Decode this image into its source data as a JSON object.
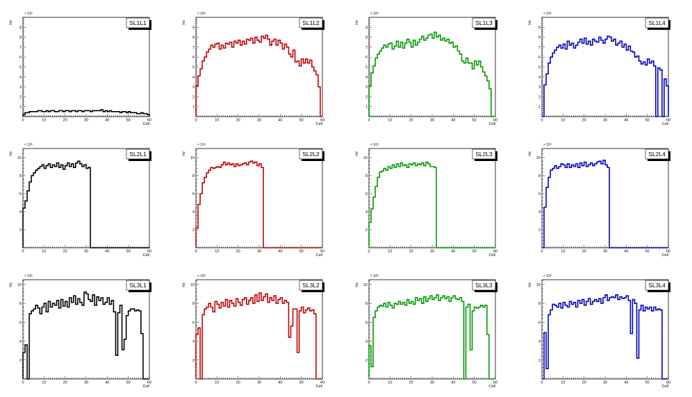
{
  "colors": {
    "black": "#000000",
    "red": "#c00000",
    "green": "#009900",
    "blue": "#0000bb"
  },
  "chart_data": [
    {
      "type": "histogram",
      "title": "SL1L1",
      "legend": "SL1L1",
      "color": "#000000",
      "xlabel": "Cell",
      "ylabel": "Hz",
      "y_exponent": "× 10³",
      "xlim": [
        0,
        60
      ],
      "ylim": [
        0,
        10
      ],
      "x_ticks": [
        "0",
        "10",
        "20",
        "30",
        "40",
        "50",
        "60"
      ],
      "y_ticks": [
        "1",
        "2",
        "3",
        "4",
        "5",
        "6",
        "7",
        "8",
        "9"
      ],
      "values": [
        0.2,
        0.4,
        0.4,
        0.5,
        0.5,
        0.5,
        0.5,
        0.6,
        0.6,
        0.5,
        0.5,
        0.6,
        0.5,
        0.6,
        0.6,
        0.5,
        0.5,
        0.6,
        0.6,
        0.5,
        0.6,
        0.6,
        0.5,
        0.6,
        0.6,
        0.5,
        0.6,
        0.6,
        0.5,
        0.6,
        0.6,
        0.6,
        0.5,
        0.6,
        0.6,
        0.6,
        0.6,
        0.7,
        0.5,
        0.6,
        0.5,
        0.6,
        0.5,
        0.5,
        0.5,
        0.5,
        0.4,
        0.5,
        0.5,
        0.4,
        0.5,
        0.4,
        0.4,
        0.4,
        0.3,
        0.3,
        0.4,
        0.3,
        0.3,
        0.2
      ]
    },
    {
      "type": "histogram",
      "title": "SL1L2",
      "legend": "SL1L2",
      "color": "#c00000",
      "xlabel": "Cell",
      "ylabel": "Hz",
      "y_exponent": "× 10³",
      "xlim": [
        0,
        60
      ],
      "ylim": [
        0,
        10
      ],
      "x_ticks": [
        "0",
        "10",
        "20",
        "30",
        "40",
        "50",
        "60"
      ],
      "y_ticks": [
        "1",
        "2",
        "3",
        "4",
        "5",
        "6",
        "7",
        "8",
        "9"
      ],
      "values": [
        3.1,
        4.1,
        4.8,
        5.6,
        6.0,
        6.5,
        6.8,
        7.2,
        7.0,
        7.3,
        7.4,
        6.8,
        7.2,
        6.9,
        7.4,
        7.3,
        7.5,
        7.0,
        7.6,
        7.4,
        7.7,
        7.2,
        7.6,
        7.3,
        7.8,
        7.7,
        7.9,
        7.4,
        8.0,
        7.7,
        7.5,
        8.1,
        7.9,
        8.2,
        7.8,
        7.2,
        7.6,
        7.8,
        7.2,
        7.7,
        7.4,
        6.8,
        7.3,
        7.0,
        6.3,
        6.0,
        6.7,
        5.5,
        5.6,
        5.1,
        5.8,
        5.4,
        5.8,
        5.4,
        5.7,
        5.0,
        4.6,
        4.2,
        3.0,
        0.0
      ]
    },
    {
      "type": "histogram",
      "title": "SL1L3",
      "legend": "SL1L3",
      "color": "#009900",
      "xlabel": "Cell",
      "ylabel": "Hz",
      "y_exponent": "× 10³",
      "xlim": [
        0,
        60
      ],
      "ylim": [
        0,
        10
      ],
      "x_ticks": [
        "0",
        "10",
        "20",
        "30",
        "40",
        "50",
        "60"
      ],
      "y_ticks": [
        "1",
        "2",
        "3",
        "4",
        "5",
        "6",
        "7",
        "8",
        "9"
      ],
      "values": [
        3.1,
        4.4,
        5.1,
        5.9,
        6.3,
        6.6,
        6.9,
        7.2,
        7.0,
        7.3,
        7.4,
        6.8,
        7.1,
        7.6,
        7.0,
        7.5,
        6.9,
        7.4,
        7.8,
        7.5,
        7.0,
        7.7,
        7.2,
        7.5,
        7.8,
        8.1,
        7.7,
        7.9,
        8.2,
        8.3,
        7.9,
        8.5,
        8.0,
        8.2,
        7.7,
        7.9,
        7.6,
        7.8,
        7.4,
        7.5,
        7.0,
        7.1,
        6.6,
        6.3,
        5.6,
        5.4,
        5.9,
        5.4,
        5.4,
        4.8,
        5.6,
        5.2,
        5.6,
        5.0,
        4.5,
        4.1,
        3.6,
        2.8,
        0.0,
        0.0
      ]
    },
    {
      "type": "histogram",
      "title": "SL1L4",
      "legend": "SL1L4",
      "color": "#0000bb",
      "xlabel": "Cell",
      "ylabel": "Hz",
      "y_exponent": "× 10³",
      "xlim": [
        0,
        60
      ],
      "ylim": [
        0,
        10
      ],
      "x_ticks": [
        "0",
        "10",
        "20",
        "30",
        "40",
        "50",
        "60"
      ],
      "y_ticks": [
        "1",
        "2",
        "3",
        "4",
        "5",
        "6",
        "7",
        "8",
        "9"
      ],
      "values": [
        0.0,
        3.2,
        4.3,
        5.4,
        6.0,
        6.4,
        6.7,
        7.0,
        7.2,
        6.9,
        7.3,
        6.8,
        7.6,
        7.2,
        7.4,
        6.9,
        7.2,
        7.5,
        7.8,
        7.4,
        7.9,
        7.3,
        7.6,
        7.2,
        7.8,
        7.6,
        7.5,
        8.0,
        7.7,
        7.4,
        7.8,
        8.1,
        8.0,
        7.6,
        7.8,
        7.2,
        7.4,
        7.6,
        7.0,
        7.3,
        6.7,
        7.1,
        6.6,
        6.5,
        6.0,
        6.1,
        5.6,
        5.3,
        5.5,
        5.2,
        5.8,
        5.4,
        5.6,
        5.1,
        0.0,
        4.9,
        4.7,
        0.0,
        3.8,
        3.1
      ]
    },
    {
      "type": "histogram",
      "title": "SL2L1",
      "legend": "SL2L1",
      "color": "#000000",
      "xlabel": "Cell",
      "ylabel": "Hz",
      "y_exponent": "× 10³",
      "xlim": [
        0,
        60
      ],
      "ylim": [
        0,
        11
      ],
      "x_ticks": [
        "0",
        "10",
        "20",
        "30",
        "40",
        "50",
        "60"
      ],
      "y_ticks": [
        "2",
        "4",
        "6",
        "8",
        "10"
      ],
      "values": [
        4.4,
        5.2,
        6.3,
        7.3,
        8.0,
        8.3,
        8.6,
        8.8,
        9.0,
        9.2,
        8.8,
        9.1,
        9.3,
        8.9,
        9.2,
        9.0,
        9.4,
        8.9,
        9.2,
        8.7,
        9.1,
        9.4,
        9.0,
        9.3,
        8.9,
        9.4,
        9.6,
        9.3,
        9.0,
        9.2,
        8.8,
        8.9,
        0,
        0,
        0,
        0,
        0,
        0,
        0,
        0,
        0,
        0,
        0,
        0,
        0,
        0,
        0,
        0,
        0,
        0,
        0,
        0,
        0,
        0,
        0,
        0,
        0,
        0,
        0,
        0
      ]
    },
    {
      "type": "histogram",
      "title": "SL2L2",
      "legend": "SL2L2",
      "color": "#c00000",
      "xlabel": "Cell",
      "ylabel": "Hz",
      "y_exponent": "× 10³",
      "xlim": [
        0,
        60
      ],
      "ylim": [
        0,
        11
      ],
      "x_ticks": [
        "0",
        "10",
        "20",
        "30",
        "40",
        "50",
        "60"
      ],
      "y_ticks": [
        "2",
        "4",
        "6",
        "8",
        "10"
      ],
      "values": [
        2.2,
        4.8,
        6.0,
        7.2,
        7.8,
        8.3,
        8.6,
        8.9,
        8.8,
        8.9,
        9.0,
        8.9,
        9.2,
        9.5,
        9.2,
        9.4,
        9.2,
        9.3,
        9.0,
        9.3,
        9.1,
        9.2,
        9.3,
        9.4,
        9.2,
        9.5,
        9.6,
        9.4,
        9.5,
        9.1,
        9.3,
        8.9,
        0,
        0,
        0,
        0,
        0,
        0,
        0,
        0,
        0,
        0,
        0,
        0,
        0,
        0,
        0,
        0,
        0,
        0,
        0,
        0,
        0,
        0,
        0,
        0,
        0,
        0,
        0,
        0
      ]
    },
    {
      "type": "histogram",
      "title": "SL2L3",
      "legend": "SL2L3",
      "color": "#009900",
      "xlabel": "Cell",
      "ylabel": "Hz",
      "y_exponent": "× 10³",
      "xlim": [
        0,
        60
      ],
      "ylim": [
        0,
        11
      ],
      "x_ticks": [
        "0",
        "10",
        "20",
        "30",
        "40",
        "50",
        "60"
      ],
      "y_ticks": [
        "2",
        "4",
        "6",
        "8",
        "10"
      ],
      "values": [
        2.8,
        4.3,
        5.6,
        6.8,
        7.8,
        8.4,
        8.5,
        8.8,
        8.6,
        9.0,
        8.8,
        9.2,
        8.9,
        9.3,
        9.0,
        9.4,
        9.1,
        9.2,
        8.9,
        9.3,
        9.2,
        9.4,
        9.1,
        9.3,
        9.2,
        9.4,
        9.1,
        9.5,
        9.3,
        9.0,
        9.0,
        8.9,
        0,
        0,
        0,
        0,
        0,
        0,
        0,
        0,
        0,
        0,
        0,
        0,
        0,
        0,
        0,
        0,
        0,
        0,
        0,
        0,
        0,
        0,
        0,
        0,
        0,
        0,
        0,
        0
      ]
    },
    {
      "type": "histogram",
      "title": "SL2L4",
      "legend": "SL2L4",
      "color": "#0000bb",
      "xlabel": "Cell",
      "ylabel": "Hz",
      "y_exponent": "× 10³",
      "xlim": [
        0,
        60
      ],
      "ylim": [
        0,
        11
      ],
      "x_ticks": [
        "0",
        "10",
        "20",
        "30",
        "40",
        "50",
        "60"
      ],
      "y_ticks": [
        "2",
        "4",
        "6",
        "8",
        "10"
      ],
      "values": [
        0.0,
        4.5,
        6.7,
        7.8,
        8.6,
        8.8,
        9.1,
        8.8,
        9.0,
        9.3,
        9.2,
        8.9,
        9.3,
        8.9,
        9.2,
        9.0,
        9.3,
        8.9,
        9.4,
        9.1,
        9.5,
        9.0,
        9.2,
        9.4,
        9.1,
        9.3,
        9.5,
        9.6,
        9.3,
        9.7,
        9.2,
        8.9,
        0,
        0,
        0,
        0,
        0,
        0,
        0,
        0,
        0,
        0,
        0,
        0,
        0,
        0,
        0,
        0,
        0,
        0,
        0,
        0,
        0,
        0,
        0,
        0,
        0,
        0,
        0,
        0
      ]
    },
    {
      "type": "histogram",
      "title": "SL3L1",
      "legend": "SL3L1",
      "color": "#000000",
      "xlabel": "Cell",
      "ylabel": "Hz",
      "y_exponent": "× 10³",
      "xlim": [
        0,
        60
      ],
      "ylim": [
        0,
        10.5
      ],
      "x_ticks": [
        "0",
        "10",
        "20",
        "30",
        "40",
        "50",
        "60"
      ],
      "y_ticks": [
        "2",
        "4",
        "6",
        "8",
        "10"
      ],
      "values": [
        2.8,
        3.6,
        0.0,
        6.9,
        7.2,
        7.4,
        7.8,
        7.5,
        6.9,
        7.6,
        8.0,
        7.1,
        8.2,
        7.6,
        8.0,
        7.8,
        8.3,
        7.5,
        8.4,
        7.7,
        8.2,
        7.6,
        8.6,
        8.1,
        8.8,
        7.9,
        8.5,
        8.1,
        7.8,
        9.2,
        9.0,
        8.4,
        8.2,
        8.9,
        7.8,
        8.7,
        8.3,
        8.6,
        7.9,
        8.1,
        8.6,
        7.9,
        8.3,
        7.1,
        2.5,
        7.0,
        7.8,
        3.1,
        4.2,
        6.7,
        7.2,
        7.4,
        7.4,
        7.2,
        7.3,
        7.2,
        4.8,
        0.0,
        0.0,
        0.0
      ]
    },
    {
      "type": "histogram",
      "title": "SL3L2",
      "legend": "SL3L2",
      "color": "#c00000",
      "xlabel": "Cell",
      "ylabel": "Hz",
      "y_exponent": "× 10³",
      "xlim": [
        0,
        60
      ],
      "ylim": [
        0,
        10.5
      ],
      "x_ticks": [
        "0",
        "10",
        "20",
        "30",
        "40",
        "50",
        "60"
      ],
      "y_ticks": [
        "2",
        "4",
        "6",
        "8",
        "10"
      ],
      "values": [
        4.7,
        5.4,
        0.0,
        6.8,
        7.4,
        7.6,
        8.0,
        7.6,
        7.1,
        8.2,
        7.9,
        7.5,
        8.1,
        7.7,
        8.4,
        7.6,
        8.3,
        8.0,
        7.7,
        8.5,
        8.1,
        7.8,
        8.4,
        8.6,
        7.9,
        8.3,
        8.6,
        8.0,
        8.9,
        8.2,
        9.1,
        8.3,
        8.7,
        9.0,
        8.1,
        8.6,
        8.3,
        8.8,
        8.0,
        8.4,
        8.6,
        8.0,
        8.3,
        8.1,
        4.4,
        5.6,
        7.4,
        7.4,
        2.8,
        7.2,
        7.6,
        7.0,
        7.3,
        7.5,
        7.2,
        7.3,
        6.9,
        0.0,
        0.0,
        0.0
      ]
    },
    {
      "type": "histogram",
      "title": "SL3L3",
      "legend": "SL3L3",
      "color": "#009900",
      "xlabel": "Cell",
      "ylabel": "Hz",
      "y_exponent": "× 10³",
      "xlim": [
        0,
        60
      ],
      "ylim": [
        0,
        10.5
      ],
      "x_ticks": [
        "0",
        "10",
        "20",
        "30",
        "40",
        "50",
        "60"
      ],
      "y_ticks": [
        "2",
        "4",
        "6",
        "8",
        "10"
      ],
      "values": [
        3.5,
        1.3,
        6.5,
        7.2,
        7.6,
        7.8,
        7.7,
        8.0,
        7.6,
        8.1,
        7.8,
        7.5,
        8.0,
        7.9,
        8.2,
        7.9,
        8.1,
        7.8,
        8.4,
        8.0,
        8.2,
        7.9,
        8.6,
        8.3,
        8.5,
        8.0,
        8.7,
        8.2,
        8.5,
        8.8,
        8.4,
        8.6,
        8.9,
        8.3,
        8.6,
        8.8,
        8.5,
        8.7,
        8.2,
        8.6,
        8.8,
        8.5,
        8.4,
        8.6,
        8.2,
        0.0,
        7.6,
        7.9,
        3.1,
        7.2,
        7.6,
        7.5,
        7.6,
        7.8,
        7.6,
        7.8,
        4.7,
        0.0,
        0.0,
        0.0
      ]
    },
    {
      "type": "histogram",
      "title": "SL3L4",
      "legend": "SL3L4",
      "color": "#0000bb",
      "xlabel": "Cell",
      "ylabel": "Hz",
      "y_exponent": "× 10³",
      "xlim": [
        0,
        60
      ],
      "ylim": [
        0,
        10.5
      ],
      "x_ticks": [
        "0",
        "10",
        "20",
        "30",
        "40",
        "50",
        "60"
      ],
      "y_ticks": [
        "2",
        "4",
        "6",
        "8",
        "10"
      ],
      "values": [
        0.0,
        4.9,
        1.1,
        6.8,
        7.3,
        7.9,
        7.8,
        7.6,
        8.0,
        7.5,
        8.1,
        7.8,
        7.6,
        8.2,
        7.9,
        8.1,
        7.6,
        8.3,
        8.0,
        8.4,
        7.8,
        8.2,
        8.5,
        7.9,
        8.2,
        8.4,
        8.2,
        8.5,
        8.0,
        8.6,
        8.9,
        8.3,
        8.6,
        8.7,
        8.6,
        8.9,
        8.4,
        8.7,
        8.5,
        8.6,
        8.8,
        8.3,
        4.8,
        8.4,
        8.0,
        2.2,
        7.3,
        7.8,
        7.2,
        7.6,
        7.4,
        7.6,
        7.2,
        7.6,
        7.3,
        7.4,
        7.3,
        0.0,
        0.0,
        0.0
      ]
    }
  ]
}
